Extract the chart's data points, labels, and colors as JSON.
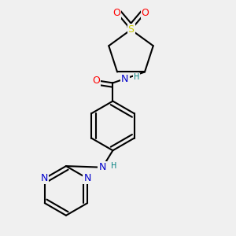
{
  "bg_color": "#f0f0f0",
  "bond_color": "#000000",
  "bond_width": 1.5,
  "atom_colors": {
    "C": "#000000",
    "N": "#0000cc",
    "O": "#ff0000",
    "S": "#cccc00",
    "H": "#008080"
  },
  "font_size": 8,
  "fig_width": 3.0,
  "fig_height": 3.0
}
